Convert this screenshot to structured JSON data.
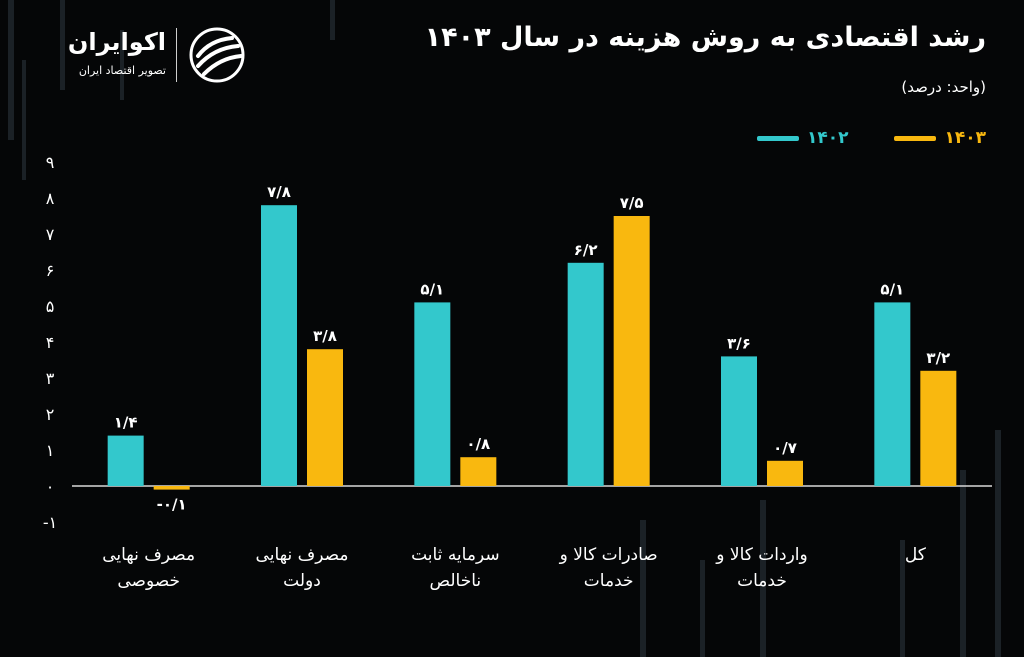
{
  "title": "رشد اقتصادی به روش هزینه در سال ۱۴۰۳",
  "subtitle": "(واحد: درصد)",
  "logo": {
    "name": "اکوایران",
    "tagline": "تصویر اقتصاد ایران"
  },
  "colors": {
    "series_1402": "#33C8CC",
    "series_1403": "#F9B80F",
    "background": "#050607",
    "axis": "#d9d9d9"
  },
  "chart_data": {
    "type": "bar",
    "title": "رشد اقتصادی به روش هزینه در سال ۱۴۰۳",
    "subtitle": "(واحد: درصد)",
    "xlabel": "",
    "ylabel": "",
    "ylim": [
      -1,
      9
    ],
    "yticks": [
      -1,
      0,
      1,
      2,
      3,
      4,
      5,
      6,
      7,
      8,
      9
    ],
    "ytick_labels": [
      "-۱",
      "۰",
      "۱",
      "۲",
      "۳",
      "۴",
      "۵",
      "۶",
      "۷",
      "۸",
      "۹"
    ],
    "grid": false,
    "legend_position": "top-right",
    "categories": [
      [
        "مصرف نهایی",
        "خصوصی"
      ],
      [
        "مصرف نهایی",
        "دولت"
      ],
      [
        "سرمایه ثابت",
        "ناخالص"
      ],
      [
        "صادرات کالا و",
        "خدمات"
      ],
      [
        "واردات کالا و",
        "خدمات"
      ],
      [
        "کل"
      ]
    ],
    "series": [
      {
        "name": "۱۴۰۲",
        "color": "#33C8CC",
        "values": [
          1.4,
          7.8,
          5.1,
          6.2,
          3.6,
          5.1
        ],
        "labels": [
          "۱/۴",
          "۷/۸",
          "۵/۱",
          "۶/۲",
          "۳/۶",
          "۵/۱"
        ]
      },
      {
        "name": "۱۴۰۳",
        "color": "#F9B80F",
        "values": [
          -0.1,
          3.8,
          0.8,
          7.5,
          0.7,
          3.2
        ],
        "labels": [
          "-۰/۱",
          "۳/۸",
          "۰/۸",
          "۷/۵",
          "۰/۷",
          "۳/۲"
        ]
      }
    ]
  }
}
